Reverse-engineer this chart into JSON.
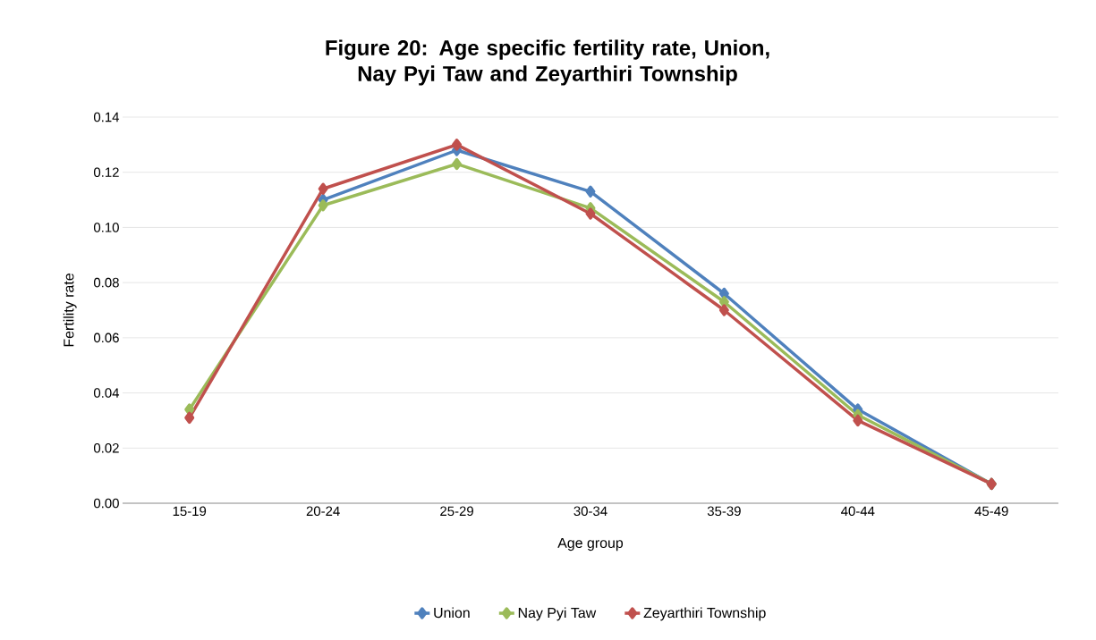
{
  "chart_data": {
    "type": "line",
    "title": "Figure 20: Age specific fertility rate, Union, Nay Pyi Taw and Zeyarthiri Township",
    "xlabel": "Age group",
    "ylabel": "Fertility rate",
    "categories": [
      "15-19",
      "20-24",
      "25-29",
      "30-34",
      "35-39",
      "40-44",
      "45-49"
    ],
    "series": [
      {
        "name": "Union",
        "color": "#4f81bd",
        "values": [
          null,
          0.11,
          0.128,
          0.113,
          0.076,
          0.034,
          0.007
        ]
      },
      {
        "name": "Nay Pyi Taw",
        "color": "#9bbb59",
        "values": [
          0.034,
          0.108,
          0.123,
          0.107,
          0.073,
          0.032,
          0.007
        ]
      },
      {
        "name": "Zeyarthiri Township",
        "color": "#c0504d",
        "values": [
          0.031,
          0.114,
          0.13,
          0.105,
          0.07,
          0.03,
          0.007
        ]
      }
    ],
    "ylim": [
      0,
      0.14
    ],
    "yticks": [
      {
        "value": 0,
        "label": "0.00"
      },
      {
        "value": 0.02,
        "label": "0.02"
      },
      {
        "value": 0.04,
        "label": "0.04"
      },
      {
        "value": 0.06,
        "label": "0.06"
      },
      {
        "value": 0.08,
        "label": "0.08"
      },
      {
        "value": 0.1,
        "label": "0.10"
      },
      {
        "value": 0.12,
        "label": "0.12"
      },
      {
        "value": 0.14,
        "label": "0.14"
      }
    ],
    "grid": "y",
    "legend": "bottom",
    "marker": "diamond",
    "line_style": "solid"
  }
}
